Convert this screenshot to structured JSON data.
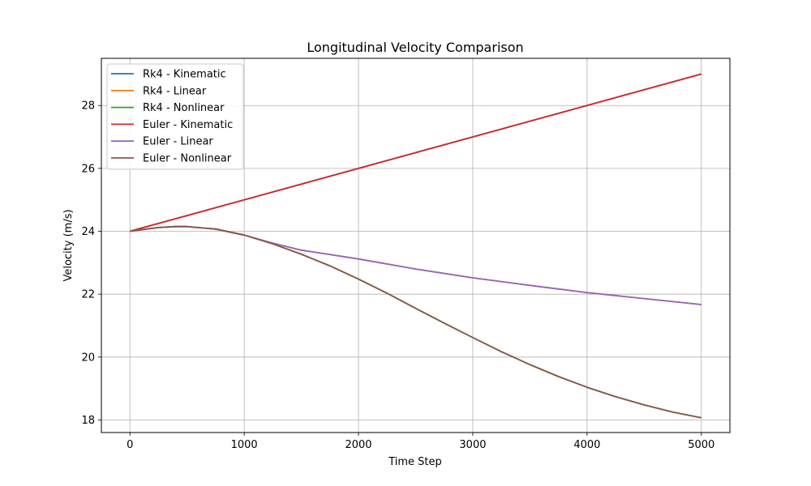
{
  "chart_data": {
    "type": "line",
    "title": "Longitudinal Velocity Comparison",
    "xlabel": "Time Step",
    "ylabel": "Velocity (m/s)",
    "xlim": [
      -250,
      5250
    ],
    "ylim": [
      17.6,
      29.5
    ],
    "xticks": [
      0,
      1000,
      2000,
      3000,
      4000,
      5000
    ],
    "yticks": [
      18,
      20,
      22,
      24,
      26,
      28
    ],
    "grid": true,
    "legend_position": "top-left",
    "series": [
      {
        "name": "Rk4 - Kinematic",
        "color": "#1f77b4",
        "x": [
          0,
          5000
        ],
        "y": [
          24.0,
          29.0
        ]
      },
      {
        "name": "Rk4 - Linear",
        "color": "#ff7f0e",
        "x": [
          0,
          250,
          400,
          500,
          750,
          1000,
          1250,
          1500,
          2000,
          2500,
          3000,
          3500,
          4000,
          4500,
          5000
        ],
        "y": [
          24.0,
          24.12,
          24.15,
          24.15,
          24.07,
          23.88,
          23.62,
          23.4,
          23.12,
          22.8,
          22.52,
          22.28,
          22.05,
          21.86,
          21.67
        ]
      },
      {
        "name": "Rk4 - Nonlinear",
        "color": "#2ca02c",
        "x": [
          0,
          250,
          400,
          500,
          750,
          1000,
          1250,
          1500,
          1750,
          2000,
          2250,
          2500,
          2750,
          3000,
          3250,
          3500,
          3750,
          4000,
          4250,
          4500,
          4750,
          5000
        ],
        "y": [
          24.0,
          24.12,
          24.15,
          24.15,
          24.07,
          23.88,
          23.6,
          23.27,
          22.9,
          22.48,
          22.03,
          21.55,
          21.08,
          20.62,
          20.17,
          19.76,
          19.38,
          19.04,
          18.74,
          18.48,
          18.25,
          18.07
        ]
      },
      {
        "name": "Euler - Kinematic",
        "color": "#d62728",
        "x": [
          0,
          5000
        ],
        "y": [
          24.0,
          29.0
        ]
      },
      {
        "name": "Euler - Linear",
        "color": "#9467bd",
        "x": [
          0,
          250,
          400,
          500,
          750,
          1000,
          1250,
          1500,
          2000,
          2500,
          3000,
          3500,
          4000,
          4500,
          5000
        ],
        "y": [
          24.0,
          24.12,
          24.15,
          24.15,
          24.07,
          23.88,
          23.62,
          23.4,
          23.12,
          22.8,
          22.52,
          22.28,
          22.05,
          21.86,
          21.67
        ]
      },
      {
        "name": "Euler - Nonlinear",
        "color": "#8c564b",
        "x": [
          0,
          250,
          400,
          500,
          750,
          1000,
          1250,
          1500,
          1750,
          2000,
          2250,
          2500,
          2750,
          3000,
          3250,
          3500,
          3750,
          4000,
          4250,
          4500,
          4750,
          5000
        ],
        "y": [
          24.0,
          24.12,
          24.15,
          24.15,
          24.07,
          23.88,
          23.6,
          23.27,
          22.9,
          22.48,
          22.03,
          21.55,
          21.08,
          20.62,
          20.17,
          19.76,
          19.38,
          19.04,
          18.74,
          18.48,
          18.25,
          18.07
        ]
      }
    ]
  }
}
